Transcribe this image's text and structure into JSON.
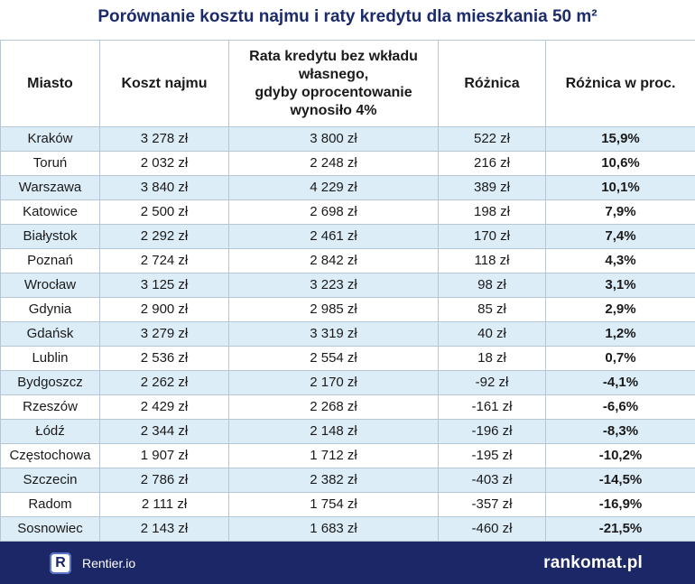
{
  "title": "Porównanie kosztu najmu i raty kredytu dla mieszkania 50 m²",
  "headers": {
    "city": "Miasto",
    "rent": "Koszt najmu",
    "loan_line1": "Rata kredytu bez wkładu",
    "loan_line2": "własnego,",
    "loan_line3": "gdyby oprocentowanie",
    "loan_line4": "wynosiło 4%",
    "diff": "Różnica",
    "diff_pct": "Różnica w proc."
  },
  "rows": [
    {
      "city": "Kraków",
      "rent": "3 278 zł",
      "loan": "3 800 zł",
      "diff": "522 zł",
      "pct": "15,9%"
    },
    {
      "city": "Toruń",
      "rent": "2 032 zł",
      "loan": "2 248 zł",
      "diff": "216 zł",
      "pct": "10,6%"
    },
    {
      "city": "Warszawa",
      "rent": "3 840 zł",
      "loan": "4 229 zł",
      "diff": "389 zł",
      "pct": "10,1%"
    },
    {
      "city": "Katowice",
      "rent": "2 500 zł",
      "loan": "2 698 zł",
      "diff": "198 zł",
      "pct": "7,9%"
    },
    {
      "city": "Białystok",
      "rent": "2 292 zł",
      "loan": "2 461 zł",
      "diff": "170 zł",
      "pct": "7,4%"
    },
    {
      "city": "Poznań",
      "rent": "2 724 zł",
      "loan": "2 842 zł",
      "diff": "118 zł",
      "pct": "4,3%"
    },
    {
      "city": "Wrocław",
      "rent": "3 125 zł",
      "loan": "3 223 zł",
      "diff": "98 zł",
      "pct": "3,1%"
    },
    {
      "city": "Gdynia",
      "rent": "2 900 zł",
      "loan": "2 985 zł",
      "diff": "85 zł",
      "pct": "2,9%"
    },
    {
      "city": "Gdańsk",
      "rent": "3 279 zł",
      "loan": "3 319 zł",
      "diff": "40 zł",
      "pct": "1,2%"
    },
    {
      "city": "Lublin",
      "rent": "2 536 zł",
      "loan": "2 554 zł",
      "diff": "18 zł",
      "pct": "0,7%"
    },
    {
      "city": "Bydgoszcz",
      "rent": "2 262 zł",
      "loan": "2 170 zł",
      "diff": "-92 zł",
      "pct": "-4,1%"
    },
    {
      "city": "Rzeszów",
      "rent": "2 429 zł",
      "loan": "2 268 zł",
      "diff": "-161 zł",
      "pct": "-6,6%"
    },
    {
      "city": "Łódź",
      "rent": "2 344 zł",
      "loan": "2 148 zł",
      "diff": "-196 zł",
      "pct": "-8,3%"
    },
    {
      "city": "Częstochowa",
      "rent": "1 907 zł",
      "loan": "1 712 zł",
      "diff": "-195 zł",
      "pct": "-10,2%"
    },
    {
      "city": "Szczecin",
      "rent": "2 786 zł",
      "loan": "2 382 zł",
      "diff": "-403 zł",
      "pct": "-14,5%"
    },
    {
      "city": "Radom",
      "rent": "2 111 zł",
      "loan": "1 754 zł",
      "diff": "-357 zł",
      "pct": "-16,9%"
    },
    {
      "city": "Sosnowiec",
      "rent": "2 143 zł",
      "loan": "1 683 zł",
      "diff": "-460 zł",
      "pct": "-21,5%"
    }
  ],
  "footer": {
    "left_logo_letter": "R",
    "left_brand": "Rentier.io",
    "right_brand": "rankomat.pl"
  },
  "colors": {
    "title": "#1c2b6b",
    "row_stripe": "#dcedf8",
    "footer_bg": "#1b2767"
  }
}
